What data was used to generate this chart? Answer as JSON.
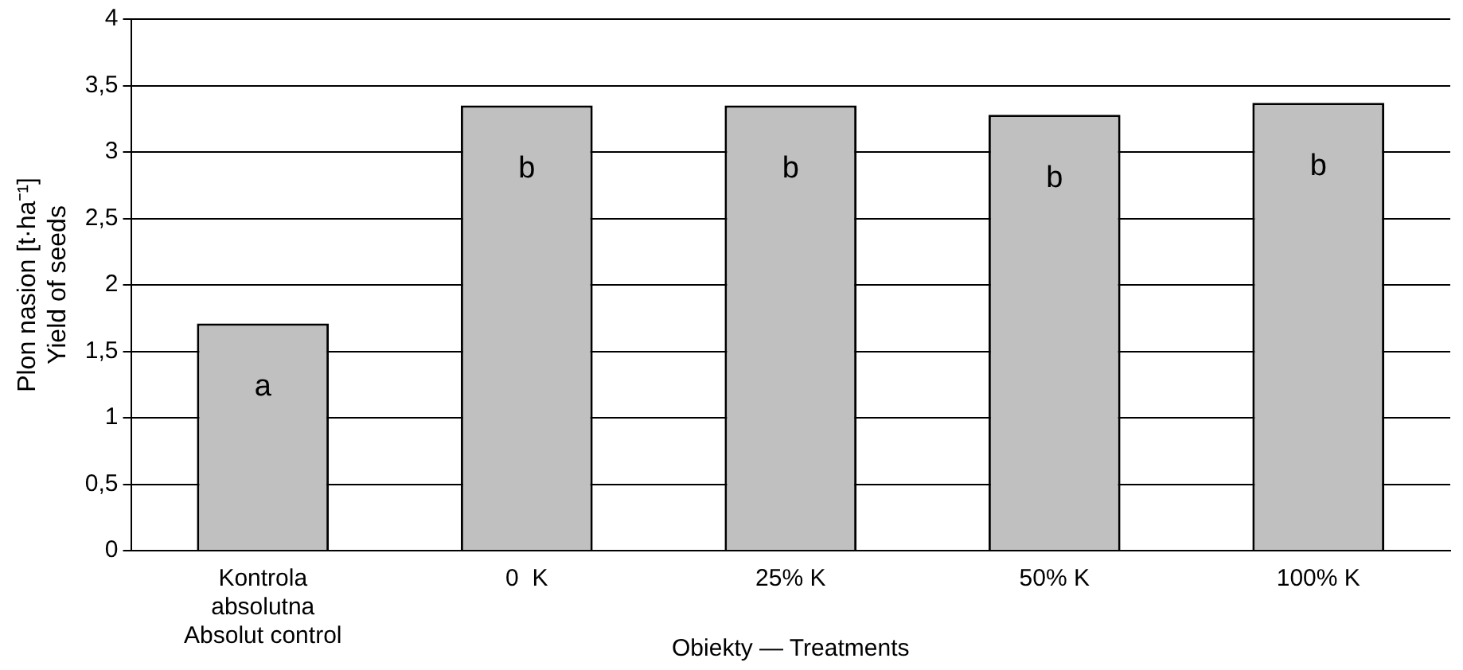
{
  "chart_data": {
    "type": "bar",
    "xlabel": "Obiekty — Treatments",
    "ylabel": "Plon nasion [t·ha⁻¹]\nYield of seeds",
    "categories": [
      "Kontrola\nabsolutna\nAbsolut control",
      "0  K",
      "25% K",
      "50% K",
      "100% K"
    ],
    "values": [
      1.71,
      3.35,
      3.35,
      3.28,
      3.37
    ],
    "color": "#c0c0c0",
    "ylim": [
      0,
      4
    ],
    "yticks": [
      0,
      {
        "value": 0.5,
        "label": "0,5"
      },
      1,
      {
        "value": 1.5,
        "label": "1,5"
      },
      2,
      {
        "value": 2.5,
        "label": "2,5"
      },
      3,
      {
        "value": 3.5,
        "label": "3,5"
      },
      4
    ],
    "grid": "y",
    "annotations": [
      "a",
      "b",
      "b",
      "b",
      "b"
    ]
  }
}
